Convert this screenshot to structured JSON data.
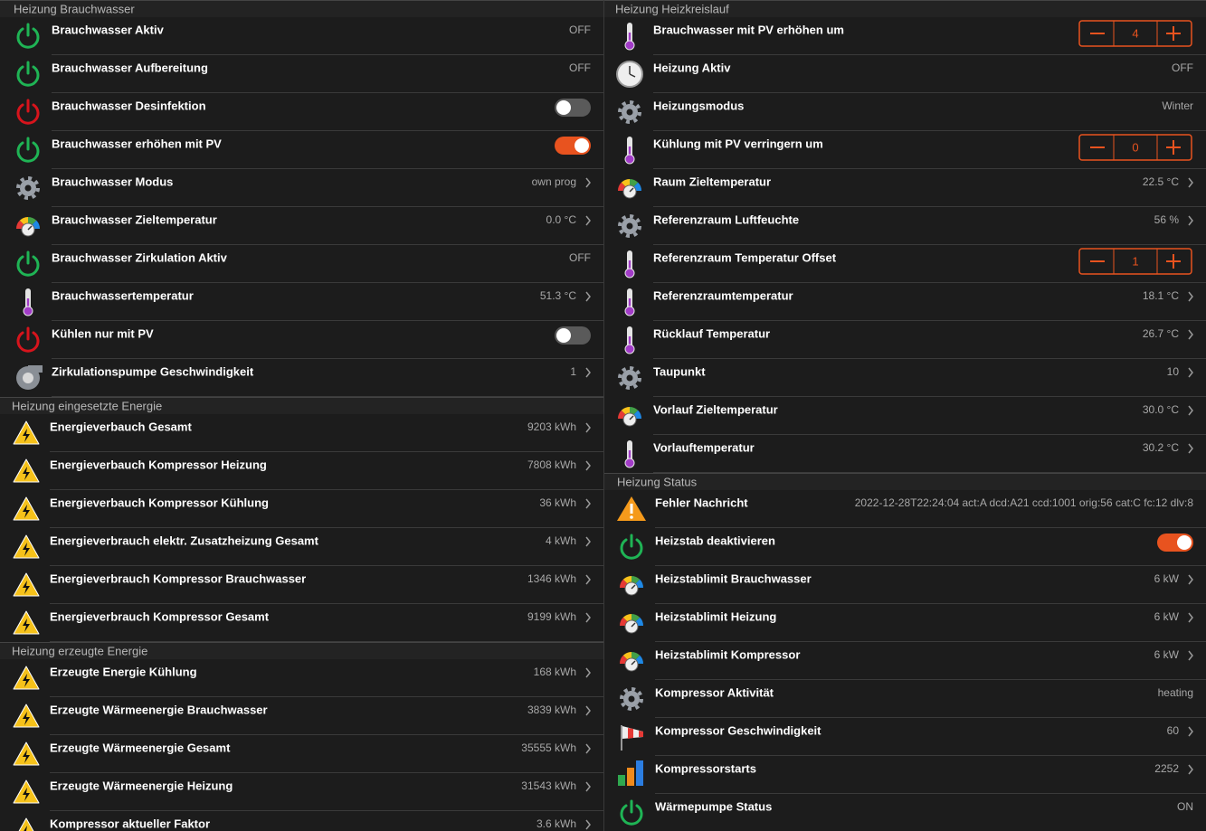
{
  "left": {
    "sections": [
      {
        "title": "Heizung Brauchwasser",
        "rows": [
          {
            "icon": "power-green",
            "label": "Brauchwasser Aktiv",
            "value": "OFF"
          },
          {
            "icon": "power-green",
            "label": "Brauchwasser Aufbereitung",
            "value": "OFF"
          },
          {
            "icon": "power-red",
            "label": "Brauchwasser Desinfektion",
            "toggle": false
          },
          {
            "icon": "power-green",
            "label": "Brauchwasser erhöhen mit PV",
            "toggle": true
          },
          {
            "icon": "gear",
            "label": "Brauchwasser Modus",
            "value": "own prog",
            "chevron": true
          },
          {
            "icon": "gauge",
            "label": "Brauchwasser Zieltemperatur",
            "value": "0.0 °C",
            "chevron": true
          },
          {
            "icon": "power-green",
            "label": "Brauchwasser Zirkulation Aktiv",
            "value": "OFF"
          },
          {
            "icon": "thermometer",
            "label": "Brauchwassertemperatur",
            "value": "51.3 °C",
            "chevron": true
          },
          {
            "icon": "power-red",
            "label": "Kühlen nur mit PV",
            "toggle": false
          },
          {
            "icon": "pump",
            "label": "Zirkulationspumpe Geschwindigkeit",
            "value": "1",
            "chevron": true
          }
        ]
      },
      {
        "title": "Heizung eingesetzte Energie",
        "rows": [
          {
            "icon": "warning",
            "label": "Energieverbauch Gesamt",
            "value": "9203 kWh",
            "chevron": true
          },
          {
            "icon": "warning",
            "label": "Energieverbauch Kompressor Heizung",
            "value": "7808 kWh",
            "chevron": true
          },
          {
            "icon": "warning",
            "label": "Energieverbauch Kompressor Kühlung",
            "value": "36 kWh",
            "chevron": true
          },
          {
            "icon": "warning",
            "label": "Energieverbrauch elektr. Zusatzheizung Gesamt",
            "value": "4 kWh",
            "chevron": true
          },
          {
            "icon": "warning",
            "label": "Energieverbrauch Kompressor Brauchwasser",
            "value": "1346 kWh",
            "chevron": true
          },
          {
            "icon": "warning",
            "label": "Energieverbrauch Kompressor Gesamt",
            "value": "9199 kWh",
            "chevron": true
          }
        ]
      },
      {
        "title": "Heizung erzeugte Energie",
        "rows": [
          {
            "icon": "warning",
            "label": "Erzeugte Energie Kühlung",
            "value": "168 kWh",
            "chevron": true
          },
          {
            "icon": "warning",
            "label": "Erzeugte Wärmeenergie Brauchwasser",
            "value": "3839 kWh",
            "chevron": true
          },
          {
            "icon": "warning",
            "label": "Erzeugte Wärmeenergie Gesamt",
            "value": "35555 kWh",
            "chevron": true
          },
          {
            "icon": "warning",
            "label": "Erzeugte Wärmeenergie Heizung",
            "value": "31543 kWh",
            "chevron": true
          },
          {
            "icon": "warning",
            "label": "Kompressor aktueller Faktor",
            "value": "3.6 kWh",
            "chevron": true
          }
        ]
      }
    ]
  },
  "right": {
    "sections": [
      {
        "title": "Heizung Heizkreislauf",
        "rows": [
          {
            "icon": "thermometer",
            "label": "Brauchwasser mit PV erhöhen um",
            "stepper": "4"
          },
          {
            "icon": "clock",
            "label": "Heizung Aktiv",
            "value": "OFF"
          },
          {
            "icon": "gear",
            "label": "Heizungsmodus",
            "value": "Winter"
          },
          {
            "icon": "thermometer",
            "label": "Kühlung mit PV verringern um",
            "stepper": "0"
          },
          {
            "icon": "gauge",
            "label": "Raum Zieltemperatur",
            "value": "22.5 °C",
            "chevron": true
          },
          {
            "icon": "gear",
            "label": "Referenzraum Luftfeuchte",
            "value": "56 %",
            "chevron": true
          },
          {
            "icon": "thermometer",
            "label": "Referenzraum Temperatur Offset",
            "stepper": "1"
          },
          {
            "icon": "thermometer",
            "label": "Referenzraumtemperatur",
            "value": "18.1 °C",
            "chevron": true
          },
          {
            "icon": "thermometer",
            "label": "Rücklauf Temperatur",
            "value": "26.7 °C",
            "chevron": true
          },
          {
            "icon": "gear",
            "label": "Taupunkt",
            "value": "10",
            "chevron": true
          },
          {
            "icon": "gauge",
            "label": "Vorlauf Zieltemperatur",
            "value": "30.0 °C",
            "chevron": true
          },
          {
            "icon": "thermometer",
            "label": "Vorlauftemperatur",
            "value": "30.2 °C",
            "chevron": true
          }
        ]
      },
      {
        "title": "Heizung Status",
        "rows": [
          {
            "icon": "alert",
            "label": "Fehler Nachricht",
            "value": "2022-12-28T22:24:04 act:A dcd:A21 ccd:1001 orig:56 cat:C fc:12 dlv:8"
          },
          {
            "icon": "power-green",
            "label": "Heizstab deaktivieren",
            "toggle": true
          },
          {
            "icon": "gauge",
            "label": "Heizstablimit Brauchwasser",
            "value": "6 kW",
            "chevron": true
          },
          {
            "icon": "gauge",
            "label": "Heizstablimit Heizung",
            "value": "6 kW",
            "chevron": true
          },
          {
            "icon": "gauge",
            "label": "Heizstablimit Kompressor",
            "value": "6 kW",
            "chevron": true
          },
          {
            "icon": "gear",
            "label": "Kompressor Aktivität",
            "value": "heating"
          },
          {
            "icon": "windsock",
            "label": "Kompressor Geschwindigkeit",
            "value": "60",
            "chevron": true
          },
          {
            "icon": "bars",
            "label": "Kompressorstarts",
            "value": "2252",
            "chevron": true
          },
          {
            "icon": "power-green",
            "label": "Wärmepumpe Status",
            "value": "ON"
          }
        ]
      }
    ]
  }
}
